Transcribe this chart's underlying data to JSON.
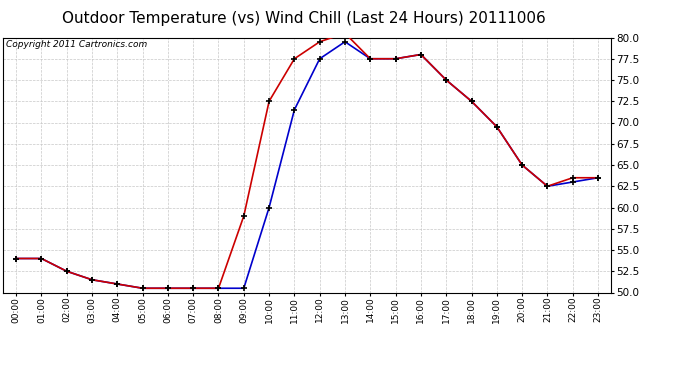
{
  "title": "Outdoor Temperature (vs) Wind Chill (Last 24 Hours) 20111006",
  "copyright": "Copyright 2011 Cartronics.com",
  "x_labels": [
    "00:00",
    "01:00",
    "02:00",
    "03:00",
    "04:00",
    "05:00",
    "06:00",
    "07:00",
    "08:00",
    "09:00",
    "10:00",
    "11:00",
    "12:00",
    "13:00",
    "14:00",
    "15:00",
    "16:00",
    "17:00",
    "18:00",
    "19:00",
    "20:00",
    "21:00",
    "22:00",
    "23:00"
  ],
  "temp_x": [
    0,
    1,
    2,
    3,
    4,
    5,
    6,
    7,
    8,
    9,
    10,
    11,
    12,
    13,
    14,
    15,
    16,
    17,
    18,
    19,
    20,
    21,
    22,
    23
  ],
  "temp_y": [
    54.0,
    54.0,
    52.5,
    51.5,
    51.0,
    50.5,
    50.5,
    50.5,
    50.5,
    59.0,
    72.5,
    77.5,
    79.5,
    80.5,
    77.5,
    77.5,
    78.0,
    75.0,
    72.5,
    69.5,
    65.0,
    62.5,
    63.5,
    63.5
  ],
  "chill_x": [
    0,
    1,
    2,
    3,
    4,
    5,
    6,
    7,
    8,
    9,
    10,
    11,
    12,
    13,
    14,
    15,
    16,
    17,
    18,
    19,
    20,
    21,
    22,
    23
  ],
  "chill_y": [
    54.0,
    54.0,
    52.5,
    51.5,
    51.0,
    50.5,
    50.5,
    50.5,
    50.5,
    50.5,
    60.0,
    71.5,
    77.5,
    79.5,
    77.5,
    77.5,
    78.0,
    75.0,
    72.5,
    69.5,
    65.0,
    62.5,
    63.0,
    63.5
  ],
  "temp_color": "#cc0000",
  "chill_color": "#0000cc",
  "bg_color": "#ffffff",
  "grid_color": "#c8c8c8",
  "ylim": [
    50.0,
    80.0
  ],
  "yticks": [
    50.0,
    52.5,
    55.0,
    57.5,
    60.0,
    62.5,
    65.0,
    67.5,
    70.0,
    72.5,
    75.0,
    77.5,
    80.0
  ],
  "title_fontsize": 11,
  "copyright_fontsize": 6.5,
  "tick_fontsize": 7.5,
  "xtick_fontsize": 6.5
}
